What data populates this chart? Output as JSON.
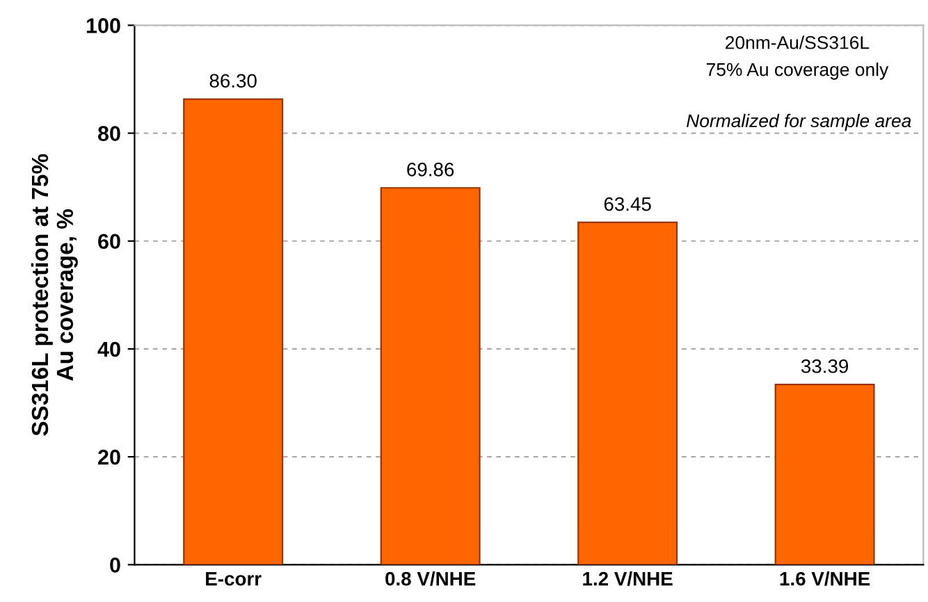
{
  "chart_data": {
    "type": "bar",
    "ylabel": "SS316L protection at 75%\nAu coverage, %",
    "categories": [
      "E-corr",
      "0.8 V/NHE",
      "1.2 V/NHE",
      "1.6 V/NHE"
    ],
    "values": [
      86.3,
      69.86,
      63.45,
      33.39
    ],
    "value_labels": [
      "86.30",
      "69.86",
      "63.45",
      "33.39"
    ],
    "color": "#ff6600",
    "ylim": [
      0,
      100
    ],
    "yticks": [
      0,
      20,
      40,
      60,
      80,
      100
    ],
    "grid": "y",
    "annotations": [
      "20nm-Au/SS316L",
      "75% Au coverage only",
      "Normalized for sample area"
    ]
  }
}
